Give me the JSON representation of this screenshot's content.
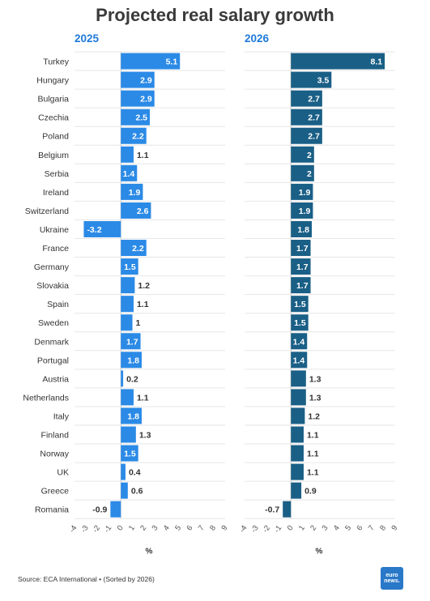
{
  "chart_data": {
    "type": "bar",
    "orientation": "horizontal",
    "title": "Projected real salary growth",
    "xlabel": "%",
    "xlim": [
      -4,
      9
    ],
    "xticks": [
      -4,
      -3,
      -2,
      -1,
      0,
      1,
      2,
      3,
      4,
      5,
      6,
      7,
      8,
      9
    ],
    "categories": [
      "Turkey",
      "Hungary",
      "Bulgaria",
      "Czechia",
      "Poland",
      "Belgium",
      "Serbia",
      "Ireland",
      "Switzerland",
      "Ukraine",
      "France",
      "Germany",
      "Slovakia",
      "Spain",
      "Sweden",
      "Denmark",
      "Portugal",
      "Austria",
      "Netherlands",
      "Italy",
      "Finland",
      "Norway",
      "UK",
      "Greece",
      "Romania"
    ],
    "series": [
      {
        "name": "2025",
        "color": "#2b8ae6",
        "values": [
          5.1,
          2.9,
          2.9,
          2.5,
          2.2,
          1.1,
          1.4,
          1.9,
          2.6,
          -3.2,
          2.2,
          1.5,
          1.2,
          1.1,
          1,
          1.7,
          1.8,
          0.2,
          1.1,
          1.8,
          1.3,
          1.5,
          0.4,
          0.6,
          -0.9
        ]
      },
      {
        "name": "2026",
        "color": "#1a5f86",
        "values": [
          8.1,
          3.5,
          2.7,
          2.7,
          2.7,
          2,
          2,
          1.9,
          1.9,
          1.8,
          1.7,
          1.7,
          1.7,
          1.5,
          1.5,
          1.4,
          1.4,
          1.3,
          1.3,
          1.2,
          1.1,
          1.1,
          1.1,
          0.9,
          -0.7
        ]
      }
    ],
    "grid": true
  },
  "source": "Source: ECA International • (Sorted by 2026)",
  "logo_text": [
    "euro",
    "news."
  ]
}
